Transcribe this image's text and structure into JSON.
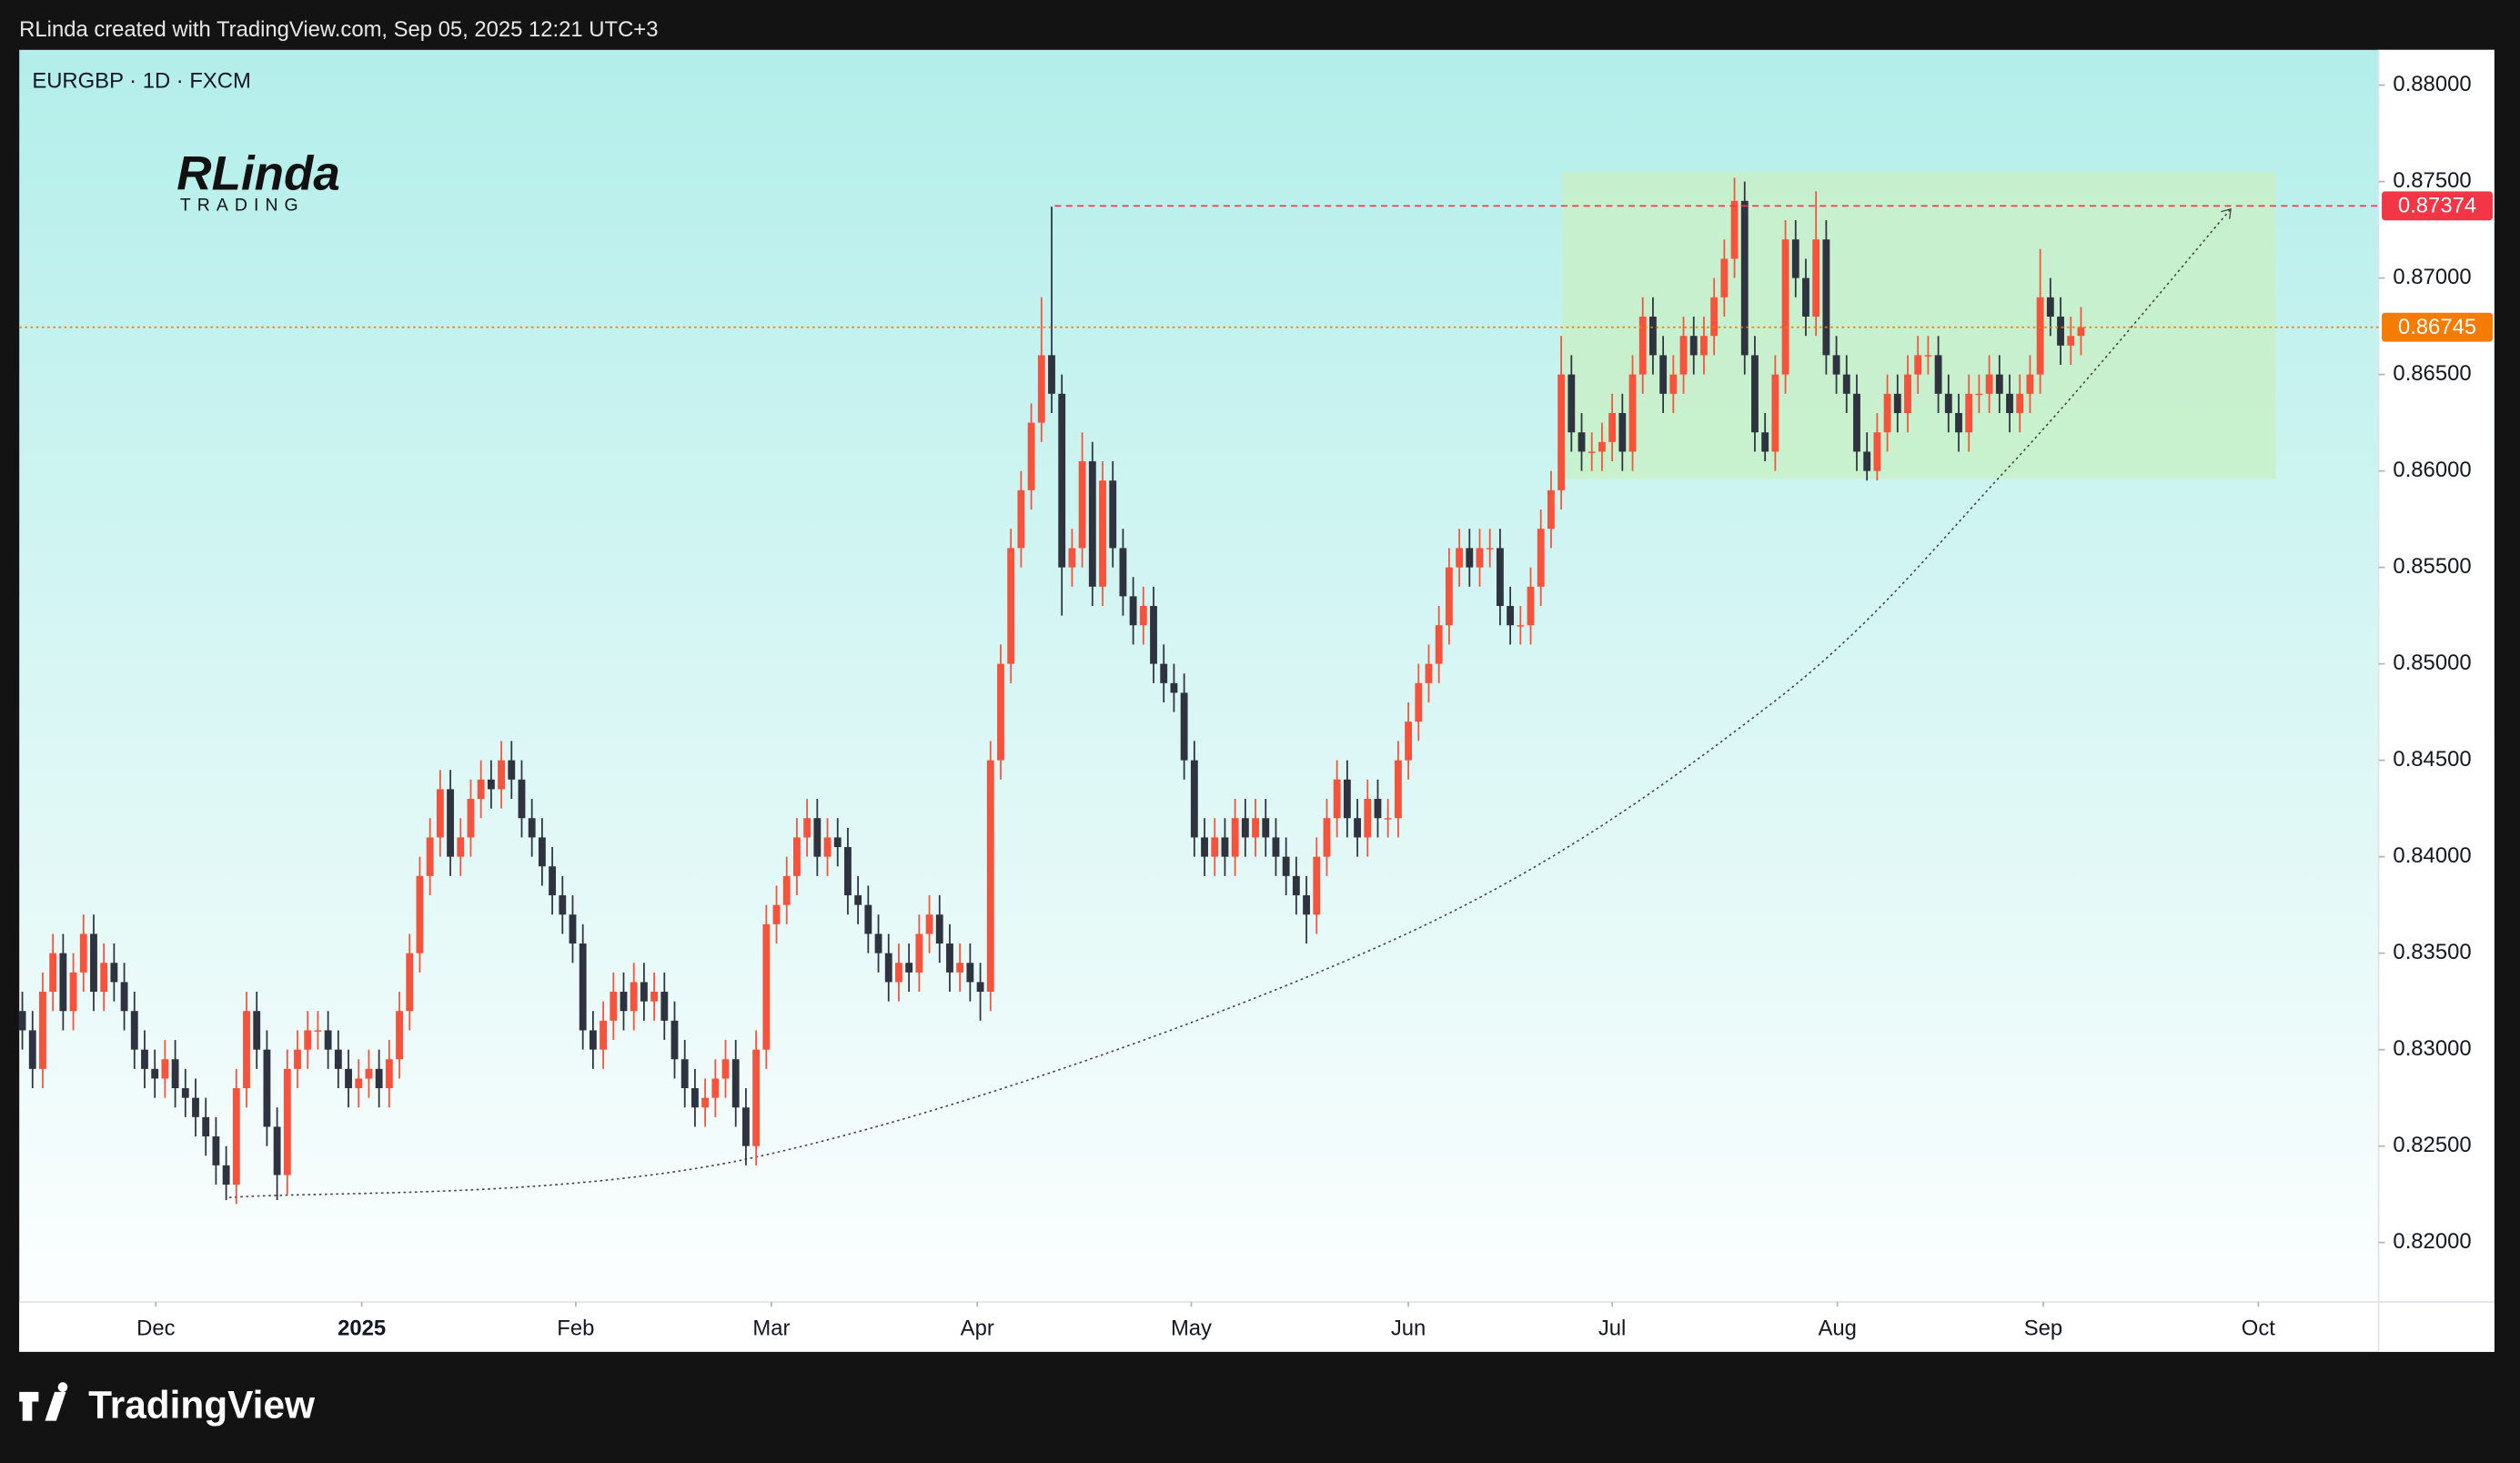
{
  "chart_data": {
    "type": "candlestick",
    "attribution": "RLinda created with TradingView.com, Sep 05, 2025 12:21 UTC+3",
    "title": "EURGBP · 1D · FXCM",
    "watermark": "RLinda",
    "watermark_sub": "TRADING",
    "brand": "TradingView",
    "up_color": "#f7523b",
    "down_color": "#2f3340",
    "xlim": [
      -0.3,
      231.2
    ],
    "xticks": [
      {
        "value": 13.1,
        "label": "Dec"
      },
      {
        "value": 33.3,
        "label": "2025"
      },
      {
        "value": 54.3,
        "label": "Feb"
      },
      {
        "value": 73.5,
        "label": "Mar"
      },
      {
        "value": 93.7,
        "label": "Apr"
      },
      {
        "value": 114.7,
        "label": "May"
      },
      {
        "value": 136,
        "label": "Jun"
      },
      {
        "value": 156,
        "label": "Jul"
      },
      {
        "value": 178.1,
        "label": "Aug"
      },
      {
        "value": 198.3,
        "label": "Sep"
      },
      {
        "value": 219.4,
        "label": "Oct"
      }
    ],
    "ylim": [
      0.81692,
      0.88183
    ],
    "yticks": [
      {
        "value": 0.82,
        "label": "0.82000"
      },
      {
        "value": 0.825,
        "label": "0.82500"
      },
      {
        "value": 0.83,
        "label": "0.83000"
      },
      {
        "value": 0.835,
        "label": "0.83500"
      },
      {
        "value": 0.84,
        "label": "0.84000"
      },
      {
        "value": 0.845,
        "label": "0.84500"
      },
      {
        "value": 0.85,
        "label": "0.85000"
      },
      {
        "value": 0.855,
        "label": "0.85500"
      },
      {
        "value": 0.86,
        "label": "0.86000"
      },
      {
        "value": 0.865,
        "label": "0.86500"
      },
      {
        "value": 0.87,
        "label": "0.87000"
      },
      {
        "value": 0.875,
        "label": "0.87500"
      },
      {
        "value": 0.88,
        "label": "0.88000"
      }
    ],
    "price_lines": [
      {
        "value": 0.87374,
        "label": "0.87374",
        "color": "#f23645",
        "x_start": 101.3,
        "dash": "4 3"
      },
      {
        "value": 0.86745,
        "label": "0.86745",
        "color": "#f57c00",
        "x_start": -0.3,
        "dash": "1.5 2"
      }
    ],
    "zone": {
      "xlim": [
        151.1,
        221.1
      ],
      "ylim": [
        0.8596,
        0.8755
      ],
      "color": "#c8f0c8"
    },
    "curve": {
      "x": [
        20.3,
        71.9,
        133.4,
        171.3,
        195,
        216.7
      ],
      "y": [
        0.82233,
        0.82442,
        0.83542,
        0.8478,
        0.86025,
        0.87358
      ]
    },
    "series": [
      {
        "name": "EURGBP",
        "open": [
          0.832,
          0.831,
          0.829,
          0.833,
          0.835,
          0.832,
          0.834,
          0.836,
          0.833,
          0.8345,
          0.8335,
          0.832,
          0.83,
          0.829,
          0.8285,
          0.8295,
          0.828,
          0.8275,
          0.8265,
          0.8255,
          0.824,
          0.823,
          0.828,
          0.832,
          0.83,
          0.826,
          0.8235,
          0.829,
          0.83,
          0.831,
          0.831,
          0.83,
          0.829,
          0.828,
          0.8285,
          0.829,
          0.828,
          0.8295,
          0.832,
          0.835,
          0.839,
          0.841,
          0.8435,
          0.84,
          0.841,
          0.843,
          0.844,
          0.8435,
          0.845,
          0.844,
          0.842,
          0.841,
          0.8395,
          0.838,
          0.837,
          0.8355,
          0.831,
          0.83,
          0.8315,
          0.833,
          0.832,
          0.8335,
          0.8325,
          0.833,
          0.8315,
          0.8295,
          0.828,
          0.827,
          0.8275,
          0.8285,
          0.8295,
          0.827,
          0.825,
          0.83,
          0.8365,
          0.8375,
          0.839,
          0.841,
          0.842,
          0.84,
          0.841,
          0.8405,
          0.838,
          0.8375,
          0.836,
          0.835,
          0.8335,
          0.8345,
          0.834,
          0.836,
          0.837,
          0.8355,
          0.834,
          0.8345,
          0.8335,
          0.833,
          0.845,
          0.85,
          0.856,
          0.859,
          0.8625,
          0.866,
          0.864,
          0.855,
          0.856,
          0.8605,
          0.854,
          0.8595,
          0.856,
          0.8535,
          0.852,
          0.853,
          0.85,
          0.849,
          0.8485,
          0.845,
          0.841,
          0.84,
          0.841,
          0.84,
          0.842,
          0.841,
          0.842,
          0.841,
          0.84,
          0.839,
          0.838,
          0.837,
          0.84,
          0.842,
          0.844,
          0.842,
          0.841,
          0.843,
          0.842,
          0.842,
          0.845,
          0.847,
          0.849,
          0.85,
          0.852,
          0.855,
          0.856,
          0.855,
          0.856,
          0.856,
          0.853,
          0.852,
          0.852,
          0.854,
          0.857,
          0.859,
          0.865,
          0.862,
          0.861,
          0.861,
          0.8615,
          0.863,
          0.861,
          0.865,
          0.868,
          0.866,
          0.864,
          0.865,
          0.867,
          0.866,
          0.867,
          0.869,
          0.871,
          0.874,
          0.866,
          0.862,
          0.861,
          0.865,
          0.872,
          0.87,
          0.868,
          0.872,
          0.866,
          0.865,
          0.864,
          0.861,
          0.86,
          0.862,
          0.864,
          0.863,
          0.865,
          0.866,
          0.866,
          0.864,
          0.863,
          0.862,
          0.864,
          0.864,
          0.865,
          0.864,
          0.863,
          0.864,
          0.865,
          0.869,
          0.868,
          0.8665,
          0.867
        ],
        "high": [
          0.833,
          0.832,
          0.834,
          0.836,
          0.836,
          0.835,
          0.837,
          0.837,
          0.8355,
          0.8355,
          0.8345,
          0.833,
          0.831,
          0.83,
          0.8305,
          0.8305,
          0.829,
          0.8285,
          0.8275,
          0.8265,
          0.825,
          0.829,
          0.833,
          0.833,
          0.831,
          0.827,
          0.83,
          0.831,
          0.832,
          0.832,
          0.832,
          0.831,
          0.83,
          0.8295,
          0.83,
          0.83,
          0.8305,
          0.833,
          0.836,
          0.84,
          0.842,
          0.8445,
          0.8445,
          0.842,
          0.844,
          0.845,
          0.845,
          0.846,
          0.846,
          0.845,
          0.843,
          0.842,
          0.8405,
          0.839,
          0.838,
          0.8365,
          0.832,
          0.8325,
          0.834,
          0.834,
          0.8345,
          0.8345,
          0.834,
          0.834,
          0.8325,
          0.8305,
          0.829,
          0.8285,
          0.8295,
          0.8305,
          0.8305,
          0.828,
          0.831,
          0.8375,
          0.8385,
          0.84,
          0.842,
          0.843,
          0.843,
          0.842,
          0.842,
          0.8415,
          0.839,
          0.8385,
          0.837,
          0.836,
          0.8355,
          0.8355,
          0.837,
          0.838,
          0.838,
          0.8365,
          0.8355,
          0.8355,
          0.8345,
          0.846,
          0.851,
          0.857,
          0.86,
          0.8635,
          0.869,
          0.8737,
          0.865,
          0.857,
          0.862,
          0.8615,
          0.8605,
          0.8605,
          0.857,
          0.8545,
          0.854,
          0.854,
          0.851,
          0.85,
          0.8495,
          0.846,
          0.842,
          0.842,
          0.842,
          0.843,
          0.843,
          0.843,
          0.843,
          0.842,
          0.841,
          0.84,
          0.839,
          0.841,
          0.843,
          0.845,
          0.845,
          0.843,
          0.844,
          0.844,
          0.843,
          0.846,
          0.848,
          0.85,
          0.851,
          0.853,
          0.856,
          0.857,
          0.857,
          0.857,
          0.857,
          0.857,
          0.854,
          0.853,
          0.855,
          0.858,
          0.86,
          0.867,
          0.866,
          0.863,
          0.862,
          0.8625,
          0.864,
          0.864,
          0.866,
          0.869,
          0.869,
          0.867,
          0.866,
          0.868,
          0.868,
          0.868,
          0.87,
          0.872,
          0.8752,
          0.875,
          0.867,
          0.863,
          0.866,
          0.873,
          0.873,
          0.871,
          0.8745,
          0.873,
          0.867,
          0.866,
          0.865,
          0.862,
          0.863,
          0.865,
          0.865,
          0.866,
          0.867,
          0.867,
          0.867,
          0.865,
          0.864,
          0.865,
          0.865,
          0.866,
          0.866,
          0.865,
          0.865,
          0.866,
          0.8715,
          0.87,
          0.869,
          0.868,
          0.8685
        ],
        "low": [
          0.83,
          0.828,
          0.828,
          0.832,
          0.831,
          0.831,
          0.833,
          0.832,
          0.832,
          0.8325,
          0.831,
          0.829,
          0.828,
          0.8275,
          0.8275,
          0.827,
          0.8265,
          0.8255,
          0.8245,
          0.823,
          0.8222,
          0.822,
          0.827,
          0.829,
          0.825,
          0.8222,
          0.8225,
          0.828,
          0.829,
          0.83,
          0.829,
          0.828,
          0.827,
          0.827,
          0.8275,
          0.827,
          0.827,
          0.8285,
          0.831,
          0.834,
          0.838,
          0.84,
          0.839,
          0.839,
          0.84,
          0.842,
          0.8425,
          0.8425,
          0.843,
          0.841,
          0.84,
          0.8385,
          0.837,
          0.836,
          0.8345,
          0.83,
          0.829,
          0.829,
          0.8305,
          0.831,
          0.831,
          0.8315,
          0.8315,
          0.8305,
          0.8285,
          0.827,
          0.826,
          0.826,
          0.8265,
          0.8275,
          0.826,
          0.824,
          0.824,
          0.829,
          0.8355,
          0.8365,
          0.838,
          0.84,
          0.839,
          0.839,
          0.8395,
          0.837,
          0.8365,
          0.835,
          0.834,
          0.8325,
          0.8325,
          0.833,
          0.833,
          0.835,
          0.8345,
          0.833,
          0.833,
          0.8325,
          0.8315,
          0.832,
          0.844,
          0.849,
          0.855,
          0.858,
          0.8615,
          0.863,
          0.8525,
          0.854,
          0.855,
          0.853,
          0.853,
          0.855,
          0.8525,
          0.851,
          0.851,
          0.849,
          0.848,
          0.8475,
          0.844,
          0.84,
          0.839,
          0.839,
          0.839,
          0.839,
          0.84,
          0.84,
          0.84,
          0.839,
          0.838,
          0.837,
          0.8355,
          0.836,
          0.839,
          0.841,
          0.841,
          0.84,
          0.84,
          0.841,
          0.841,
          0.841,
          0.844,
          0.846,
          0.848,
          0.849,
          0.851,
          0.854,
          0.854,
          0.854,
          0.855,
          0.852,
          0.851,
          0.851,
          0.851,
          0.853,
          0.856,
          0.858,
          0.861,
          0.86,
          0.86,
          0.86,
          0.8605,
          0.86,
          0.86,
          0.864,
          0.865,
          0.863,
          0.863,
          0.864,
          0.865,
          0.865,
          0.866,
          0.868,
          0.87,
          0.865,
          0.861,
          0.8605,
          0.86,
          0.864,
          0.869,
          0.867,
          0.867,
          0.865,
          0.864,
          0.863,
          0.86,
          0.8595,
          0.8595,
          0.861,
          0.862,
          0.862,
          0.864,
          0.865,
          0.863,
          0.862,
          0.861,
          0.861,
          0.863,
          0.863,
          0.863,
          0.862,
          0.862,
          0.863,
          0.864,
          0.867,
          0.8655,
          0.8655,
          0.866
        ],
        "close": [
          0.831,
          0.829,
          0.833,
          0.835,
          0.832,
          0.834,
          0.836,
          0.833,
          0.8345,
          0.8335,
          0.832,
          0.83,
          0.829,
          0.8285,
          0.8295,
          0.828,
          0.8275,
          0.8265,
          0.8255,
          0.824,
          0.823,
          0.828,
          0.832,
          0.83,
          0.826,
          0.8235,
          0.829,
          0.83,
          0.831,
          0.831,
          0.83,
          0.829,
          0.828,
          0.8285,
          0.829,
          0.828,
          0.8295,
          0.832,
          0.835,
          0.839,
          0.841,
          0.8435,
          0.84,
          0.841,
          0.843,
          0.844,
          0.8435,
          0.845,
          0.844,
          0.842,
          0.841,
          0.8395,
          0.838,
          0.837,
          0.8355,
          0.831,
          0.83,
          0.8315,
          0.833,
          0.832,
          0.8335,
          0.8325,
          0.833,
          0.8315,
          0.8295,
          0.828,
          0.827,
          0.8275,
          0.8285,
          0.8295,
          0.827,
          0.825,
          0.83,
          0.8365,
          0.8375,
          0.839,
          0.841,
          0.842,
          0.84,
          0.841,
          0.8405,
          0.838,
          0.8375,
          0.836,
          0.835,
          0.8335,
          0.8345,
          0.834,
          0.836,
          0.837,
          0.8355,
          0.834,
          0.8345,
          0.8335,
          0.833,
          0.845,
          0.85,
          0.856,
          0.859,
          0.8625,
          0.866,
          0.864,
          0.855,
          0.856,
          0.8605,
          0.854,
          0.8595,
          0.856,
          0.8535,
          0.852,
          0.853,
          0.85,
          0.849,
          0.8485,
          0.845,
          0.841,
          0.84,
          0.841,
          0.84,
          0.842,
          0.841,
          0.842,
          0.841,
          0.84,
          0.839,
          0.838,
          0.837,
          0.84,
          0.842,
          0.844,
          0.842,
          0.841,
          0.843,
          0.842,
          0.842,
          0.845,
          0.847,
          0.849,
          0.85,
          0.852,
          0.855,
          0.856,
          0.855,
          0.856,
          0.856,
          0.853,
          0.852,
          0.852,
          0.854,
          0.857,
          0.859,
          0.865,
          0.862,
          0.861,
          0.861,
          0.8615,
          0.863,
          0.861,
          0.865,
          0.868,
          0.866,
          0.864,
          0.865,
          0.867,
          0.866,
          0.867,
          0.869,
          0.871,
          0.874,
          0.866,
          0.862,
          0.861,
          0.865,
          0.872,
          0.87,
          0.868,
          0.872,
          0.866,
          0.865,
          0.864,
          0.861,
          0.86,
          0.862,
          0.864,
          0.863,
          0.865,
          0.866,
          0.866,
          0.864,
          0.863,
          0.862,
          0.864,
          0.864,
          0.865,
          0.864,
          0.863,
          0.864,
          0.865,
          0.869,
          0.868,
          0.8665,
          0.867,
          0.86745
        ]
      }
    ]
  }
}
